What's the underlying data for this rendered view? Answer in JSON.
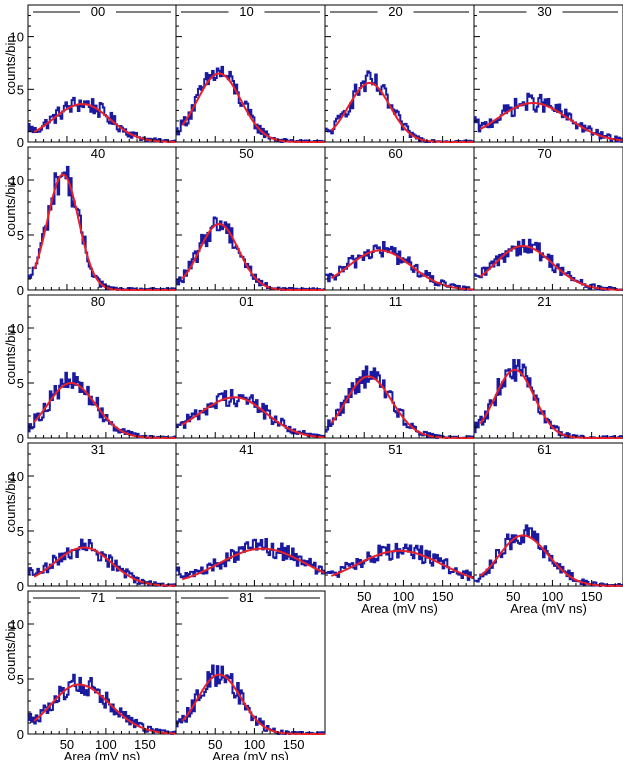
{
  "chart_data": {
    "type": "histogram-grid",
    "xlabel": "Area (mV ns)",
    "ylabel": "counts/bin",
    "xlim": [
      0,
      190
    ],
    "ylim": [
      0,
      13
    ],
    "xticks": [
      50,
      100,
      150
    ],
    "yticks": [
      0,
      5,
      10
    ],
    "series_colors": {
      "histogram": "#1a1aa0",
      "fit": "#e8202a"
    },
    "panels": [
      {
        "label": "00",
        "peak_x": 70,
        "peak_y": 3.6,
        "sigma_left": 38,
        "sigma_right": 35,
        "start_y": 1.5
      },
      {
        "label": "10",
        "peak_x": 55,
        "peak_y": 6.5,
        "sigma_left": 28,
        "sigma_right": 28,
        "start_y": 1.0
      },
      {
        "label": "20",
        "peak_x": 57,
        "peak_y": 5.6,
        "sigma_left": 27,
        "sigma_right": 26,
        "start_y": 1.0
      },
      {
        "label": "30",
        "peak_x": 75,
        "peak_y": 3.7,
        "sigma_left": 45,
        "sigma_right": 45,
        "start_y": 2.0
      },
      {
        "label": "40",
        "peak_x": 45,
        "peak_y": 10.5,
        "sigma_left": 20,
        "sigma_right": 20,
        "start_y": 0.5
      },
      {
        "label": "50",
        "peak_x": 55,
        "peak_y": 6.0,
        "sigma_left": 25,
        "sigma_right": 25,
        "start_y": 0.5
      },
      {
        "label": "60",
        "peak_x": 70,
        "peak_y": 3.6,
        "sigma_left": 40,
        "sigma_right": 40,
        "start_y": 1.0
      },
      {
        "label": "70",
        "peak_x": 62,
        "peak_y": 4.0,
        "sigma_left": 35,
        "sigma_right": 38,
        "start_y": 1.0
      },
      {
        "label": "80",
        "peak_x": 55,
        "peak_y": 5.0,
        "sigma_left": 30,
        "sigma_right": 32,
        "start_y": 0.5
      },
      {
        "label": "01",
        "peak_x": 75,
        "peak_y": 3.7,
        "sigma_left": 45,
        "sigma_right": 40,
        "start_y": 1.5
      },
      {
        "label": "11",
        "peak_x": 55,
        "peak_y": 5.6,
        "sigma_left": 28,
        "sigma_right": 30,
        "start_y": 0.8
      },
      {
        "label": "21",
        "peak_x": 52,
        "peak_y": 6.2,
        "sigma_left": 25,
        "sigma_right": 25,
        "start_y": 0.5
      },
      {
        "label": "31",
        "peak_x": 72,
        "peak_y": 3.5,
        "sigma_left": 38,
        "sigma_right": 35,
        "start_y": 1.5
      },
      {
        "label": "41",
        "peak_x": 110,
        "peak_y": 3.4,
        "sigma_left": 55,
        "sigma_right": 55,
        "start_y": 1.8
      },
      {
        "label": "51",
        "peak_x": 95,
        "peak_y": 3.2,
        "sigma_left": 55,
        "sigma_right": 55,
        "start_y": 1.5
      },
      {
        "label": "61",
        "peak_x": 62,
        "peak_y": 4.6,
        "sigma_left": 30,
        "sigma_right": 33,
        "start_y": 0.5
      },
      {
        "label": "71",
        "peak_x": 65,
        "peak_y": 4.5,
        "sigma_left": 35,
        "sigma_right": 40,
        "start_y": 1.5
      },
      {
        "label": "81",
        "peak_x": 55,
        "peak_y": 5.4,
        "sigma_left": 27,
        "sigma_right": 28,
        "start_y": 0.8
      }
    ]
  }
}
